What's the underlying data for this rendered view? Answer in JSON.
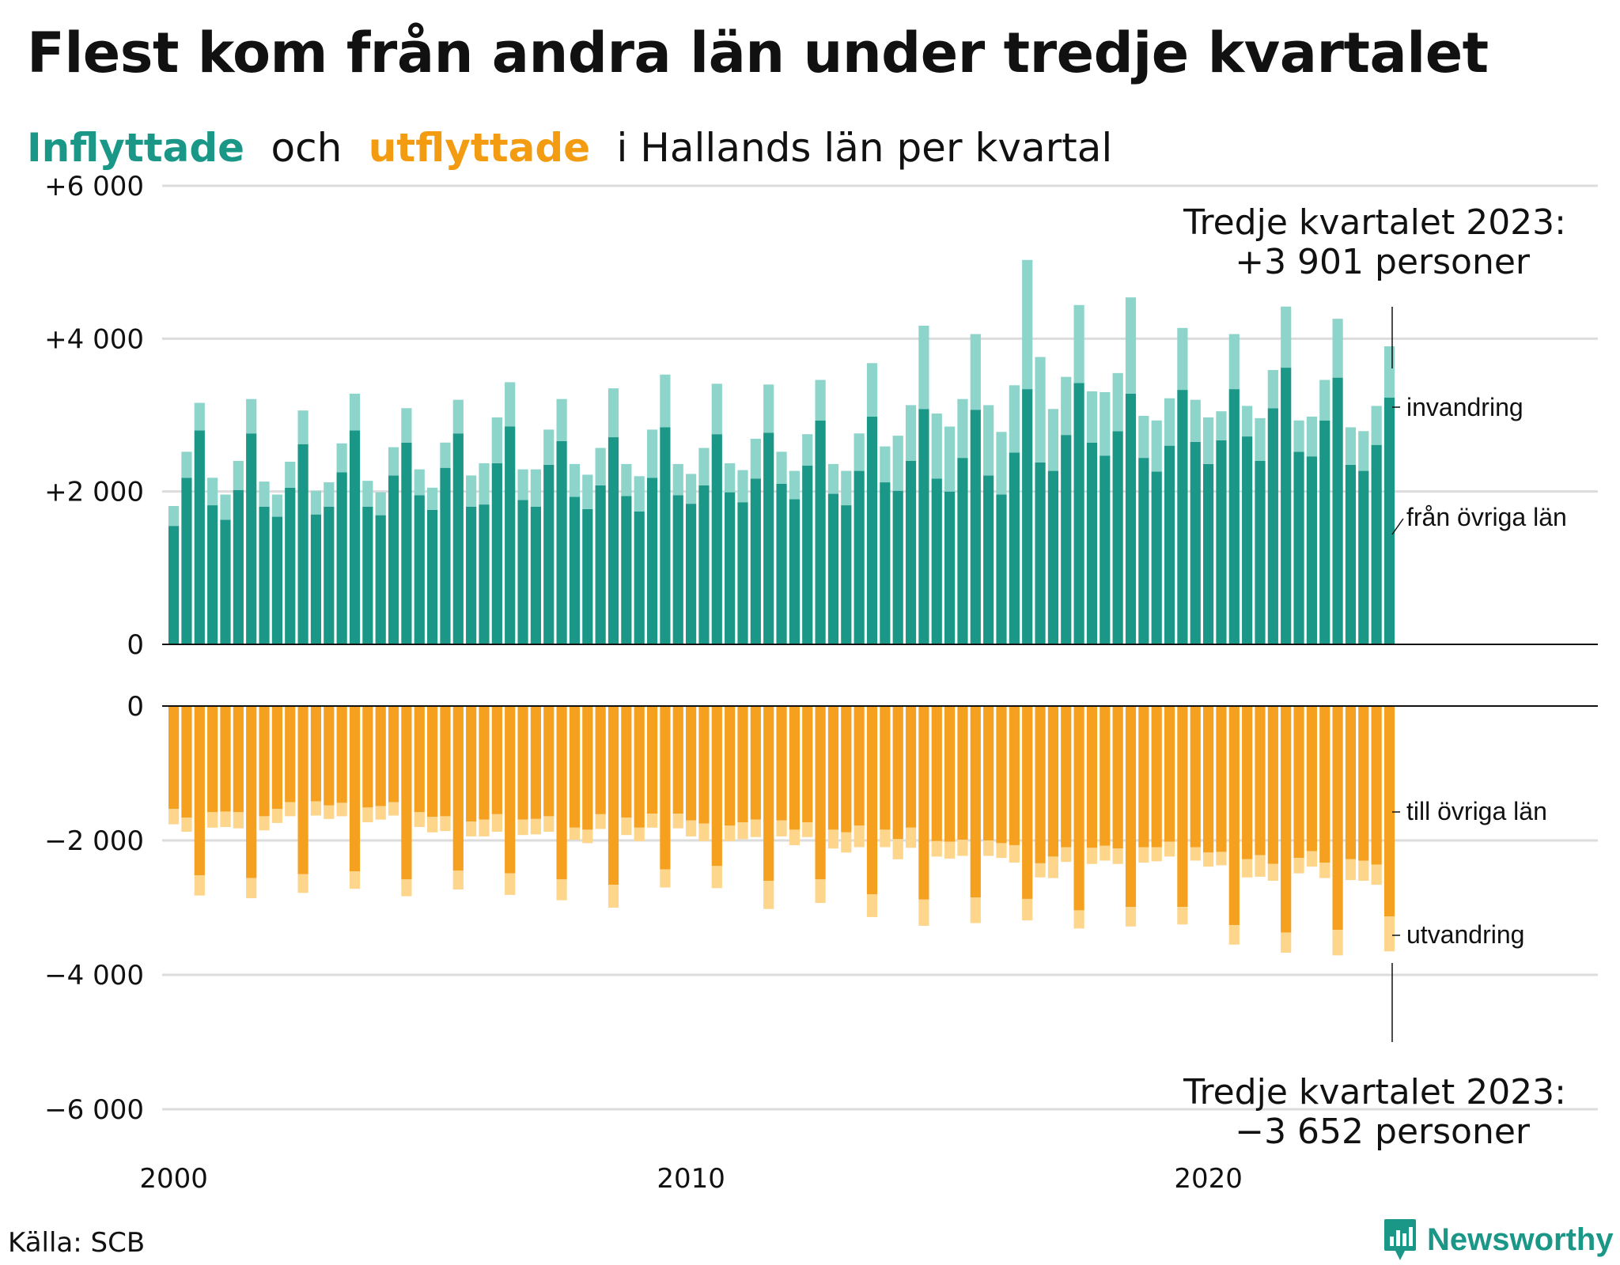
{
  "title": "Flest kom från andra län under tredje kvartalet",
  "subtitle": {
    "inflyttade": "Inflyttade",
    "och": "och",
    "utflyttade": "utflyttade",
    "rest": "i Hallands län per kvartal"
  },
  "source": "Källa: SCB",
  "logo": "Newsworthy",
  "colors": {
    "in_dark": "#1a9787",
    "in_light": "#8dd4cb",
    "out_dark": "#f5a01e",
    "out_light": "#fdd58b"
  },
  "annotations": {
    "top_line1": "Tredje kvartalet 2023:",
    "top_line2": "+3 901 personer",
    "bottom_line1": "Tredje kvartalet 2023:",
    "bottom_line2": "−3 652 personer"
  },
  "chart_data": {
    "type": "bar",
    "x_start": "2000 Q1",
    "periods": [
      "2000 Q1",
      "2000 Q2",
      "2000 Q3",
      "2000 Q4",
      "2001 Q1",
      "2001 Q2",
      "2001 Q3",
      "2001 Q4",
      "2002 Q1",
      "2002 Q2",
      "2002 Q3",
      "2002 Q4",
      "2003 Q1",
      "2003 Q2",
      "2003 Q3",
      "2003 Q4",
      "2004 Q1",
      "2004 Q2",
      "2004 Q3",
      "2004 Q4",
      "2005 Q1",
      "2005 Q2",
      "2005 Q3",
      "2005 Q4",
      "2006 Q1",
      "2006 Q2",
      "2006 Q3",
      "2006 Q4",
      "2007 Q1",
      "2007 Q2",
      "2007 Q3",
      "2007 Q4",
      "2008 Q1",
      "2008 Q2",
      "2008 Q3",
      "2008 Q4",
      "2009 Q1",
      "2009 Q2",
      "2009 Q3",
      "2009 Q4",
      "2010 Q1",
      "2010 Q2",
      "2010 Q3",
      "2010 Q4",
      "2011 Q1",
      "2011 Q2",
      "2011 Q3",
      "2011 Q4",
      "2012 Q1",
      "2012 Q2",
      "2012 Q3",
      "2012 Q4",
      "2013 Q1",
      "2013 Q2",
      "2013 Q3",
      "2013 Q4",
      "2014 Q1",
      "2014 Q2",
      "2014 Q3",
      "2014 Q4",
      "2015 Q1",
      "2015 Q2",
      "2015 Q3",
      "2015 Q4",
      "2016 Q1",
      "2016 Q2",
      "2016 Q3",
      "2016 Q4",
      "2017 Q1",
      "2017 Q2",
      "2017 Q3",
      "2017 Q4",
      "2018 Q1",
      "2018 Q2",
      "2018 Q3",
      "2018 Q4",
      "2019 Q1",
      "2019 Q2",
      "2019 Q3",
      "2019 Q4",
      "2020 Q1",
      "2020 Q2",
      "2020 Q3",
      "2020 Q4",
      "2021 Q1",
      "2021 Q2",
      "2021 Q3",
      "2021 Q4",
      "2022 Q1",
      "2022 Q2",
      "2022 Q3",
      "2022 Q4",
      "2023 Q1",
      "2023 Q2",
      "2023 Q3"
    ],
    "x_ticks": [
      "2000",
      "2010",
      "2020"
    ],
    "y_ticks_top": [
      "+6 000",
      "+4 000",
      "+2 000",
      "0"
    ],
    "y_ticks_bottom": [
      "0",
      "−2 000",
      "−4 000",
      "−6 000"
    ],
    "ylim_top": [
      0,
      6000
    ],
    "ylim_bottom": [
      -6000,
      0
    ],
    "grid": true,
    "series_labels": {
      "invandring": "invandring",
      "fran_ovriga_lan": "från övriga län",
      "till_ovriga_lan": "till övriga län",
      "utvandring": "utvandring"
    },
    "series": [
      {
        "name": "från övriga län",
        "values": [
          1550,
          2180,
          2800,
          1820,
          1630,
          2020,
          2760,
          1800,
          1670,
          2050,
          2620,
          1700,
          1800,
          2250,
          2800,
          1800,
          1690,
          2210,
          2640,
          1950,
          1760,
          2310,
          2760,
          1800,
          1830,
          2370,
          2850,
          1890,
          1800,
          2350,
          2660,
          1930,
          1770,
          2080,
          2710,
          1940,
          1740,
          2180,
          2840,
          1950,
          1840,
          2080,
          2750,
          1990,
          1860,
          2170,
          2770,
          2100,
          1900,
          2340,
          2930,
          1970,
          1820,
          2270,
          2980,
          2120,
          2010,
          2400,
          3080,
          2170,
          2000,
          2440,
          3070,
          2210,
          1960,
          2510,
          3340,
          2380,
          2270,
          2740,
          3420,
          2640,
          2470,
          2790,
          3280,
          2440,
          2260,
          2600,
          3330,
          2650,
          2360,
          2670,
          3340,
          2720,
          2400,
          3090,
          3620,
          2520,
          2460,
          2930,
          3490,
          2350,
          2270,
          2610,
          3230
        ]
      },
      {
        "name": "invandring",
        "values": [
          260,
          340,
          360,
          360,
          330,
          380,
          450,
          330,
          290,
          340,
          440,
          310,
          320,
          380,
          480,
          340,
          300,
          370,
          450,
          340,
          290,
          330,
          440,
          410,
          540,
          600,
          580,
          400,
          490,
          460,
          550,
          430,
          450,
          490,
          640,
          420,
          460,
          630,
          690,
          410,
          390,
          490,
          660,
          380,
          420,
          520,
          630,
          420,
          370,
          410,
          530,
          390,
          450,
          490,
          700,
          470,
          720,
          730,
          1090,
          850,
          850,
          770,
          990,
          920,
          820,
          880,
          1690,
          1380,
          810,
          760,
          1020,
          670,
          830,
          760,
          1260,
          550,
          670,
          620,
          810,
          550,
          610,
          380,
          720,
          400,
          560,
          500,
          800,
          410,
          520,
          530,
          770,
          490,
          520,
          510,
          670
        ]
      },
      {
        "name": "till övriga län",
        "values": [
          -1530,
          -1660,
          -2520,
          -1580,
          -1570,
          -1580,
          -2560,
          -1640,
          -1530,
          -1430,
          -2500,
          -1420,
          -1480,
          -1440,
          -2460,
          -1510,
          -1490,
          -1430,
          -2580,
          -1580,
          -1650,
          -1640,
          -2450,
          -1720,
          -1690,
          -1610,
          -2490,
          -1690,
          -1680,
          -1640,
          -2580,
          -1810,
          -1840,
          -1610,
          -2660,
          -1660,
          -1810,
          -1600,
          -2430,
          -1600,
          -1700,
          -1750,
          -2380,
          -1780,
          -1730,
          -1690,
          -2600,
          -1700,
          -1840,
          -1730,
          -2580,
          -1840,
          -1880,
          -1780,
          -2800,
          -1840,
          -1980,
          -1810,
          -2880,
          -2010,
          -2020,
          -1990,
          -2850,
          -2000,
          -2040,
          -2070,
          -2870,
          -2340,
          -2240,
          -2100,
          -3040,
          -2110,
          -2080,
          -2120,
          -2990,
          -2100,
          -2100,
          -2020,
          -2990,
          -2100,
          -2180,
          -2170,
          -3260,
          -2280,
          -2220,
          -2350,
          -3370,
          -2260,
          -2160,
          -2330,
          -3330,
          -2280,
          -2300,
          -2360,
          -3130
        ]
      },
      {
        "name": "utvandring",
        "values": [
          -230,
          -210,
          -300,
          -230,
          -230,
          -240,
          -300,
          -210,
          -210,
          -210,
          -280,
          -210,
          -200,
          -200,
          -260,
          -220,
          -200,
          -200,
          -250,
          -220,
          -230,
          -220,
          -280,
          -220,
          -250,
          -260,
          -320,
          -230,
          -230,
          -230,
          -310,
          -180,
          -200,
          -220,
          -340,
          -260,
          -200,
          -210,
          -270,
          -220,
          -240,
          -260,
          -330,
          -230,
          -250,
          -260,
          -420,
          -240,
          -230,
          -220,
          -350,
          -280,
          -300,
          -320,
          -340,
          -260,
          -300,
          -300,
          -390,
          -230,
          -250,
          -240,
          -380,
          -230,
          -220,
          -260,
          -320,
          -210,
          -320,
          -220,
          -270,
          -240,
          -220,
          -230,
          -290,
          -230,
          -210,
          -220,
          -260,
          -200,
          -210,
          -200,
          -290,
          -270,
          -320,
          -250,
          -300,
          -230,
          -230,
          -230,
          -380,
          -310,
          -300,
          -300,
          -520
        ]
      }
    ]
  }
}
